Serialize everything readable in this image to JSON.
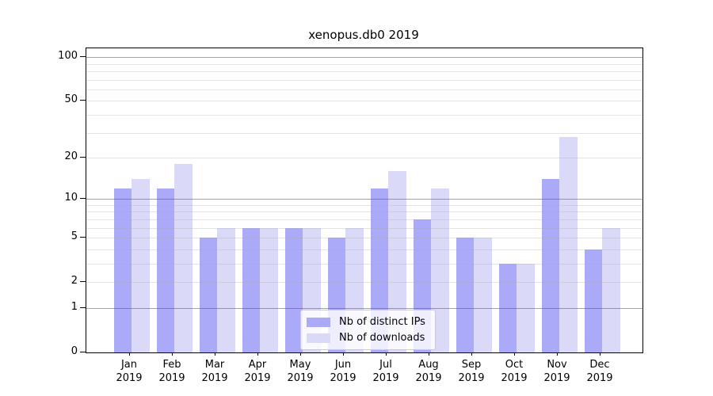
{
  "title": "xenopus.db0 2019",
  "chart_data": {
    "type": "bar",
    "title": "xenopus.db0 2019",
    "categories": [
      "Jan 2019",
      "Feb 2019",
      "Mar 2019",
      "Apr 2019",
      "May 2019",
      "Jun 2019",
      "Jul 2019",
      "Aug 2019",
      "Sep 2019",
      "Oct 2019",
      "Nov 2019",
      "Dec 2019"
    ],
    "series": [
      {
        "name": "Nb of distinct IPs",
        "color": "#aaaaf8",
        "values": [
          12,
          12,
          5,
          6,
          6,
          5,
          12,
          7,
          5,
          3,
          14,
          4
        ]
      },
      {
        "name": "Nb of downloads",
        "color": "#dadaf8",
        "values": [
          14,
          18,
          6,
          6,
          6,
          6,
          16,
          12,
          5,
          3,
          28,
          6
        ]
      }
    ],
    "xlabel": "",
    "ylabel": "",
    "y_scale": "log1p",
    "ylim": [
      0,
      115
    ],
    "y_ticks_labeled": [
      0,
      1,
      2,
      5,
      10,
      20,
      50,
      100
    ],
    "y_gridlines_major": [
      1,
      10,
      100
    ],
    "y_gridlines_minor": [
      2,
      3,
      4,
      5,
      6,
      7,
      8,
      9,
      20,
      30,
      40,
      50,
      60,
      70,
      80,
      90
    ],
    "grid": "horizontal",
    "legend_position": "lower-center-inside"
  },
  "legend": {
    "items": [
      {
        "label": "Nb of distinct IPs",
        "color": "#aaaaf8"
      },
      {
        "label": "Nb of downloads",
        "color": "#dadaf8"
      }
    ]
  }
}
